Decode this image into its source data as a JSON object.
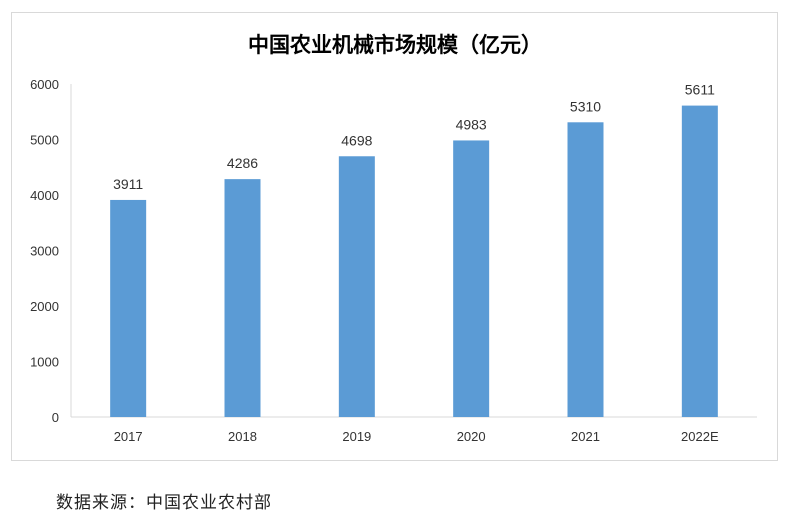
{
  "chart_data": {
    "type": "bar",
    "title": "中国农业机械市场规模（亿元）",
    "categories": [
      "2017",
      "2018",
      "2019",
      "2020",
      "2021",
      "2022E"
    ],
    "values": [
      3911,
      4286,
      4698,
      4983,
      5310,
      5611
    ],
    "data_labels": [
      "3911",
      "4286",
      "4698",
      "4983",
      "5310",
      "5611"
    ],
    "ylim": [
      0,
      6000
    ],
    "yticks": [
      0,
      1000,
      2000,
      3000,
      4000,
      5000,
      6000
    ],
    "xlabel": "",
    "ylabel": "",
    "grid": false,
    "legend": "none",
    "bar_color": "#5b9bd5"
  },
  "source": "数据来源：中国农业农村部"
}
